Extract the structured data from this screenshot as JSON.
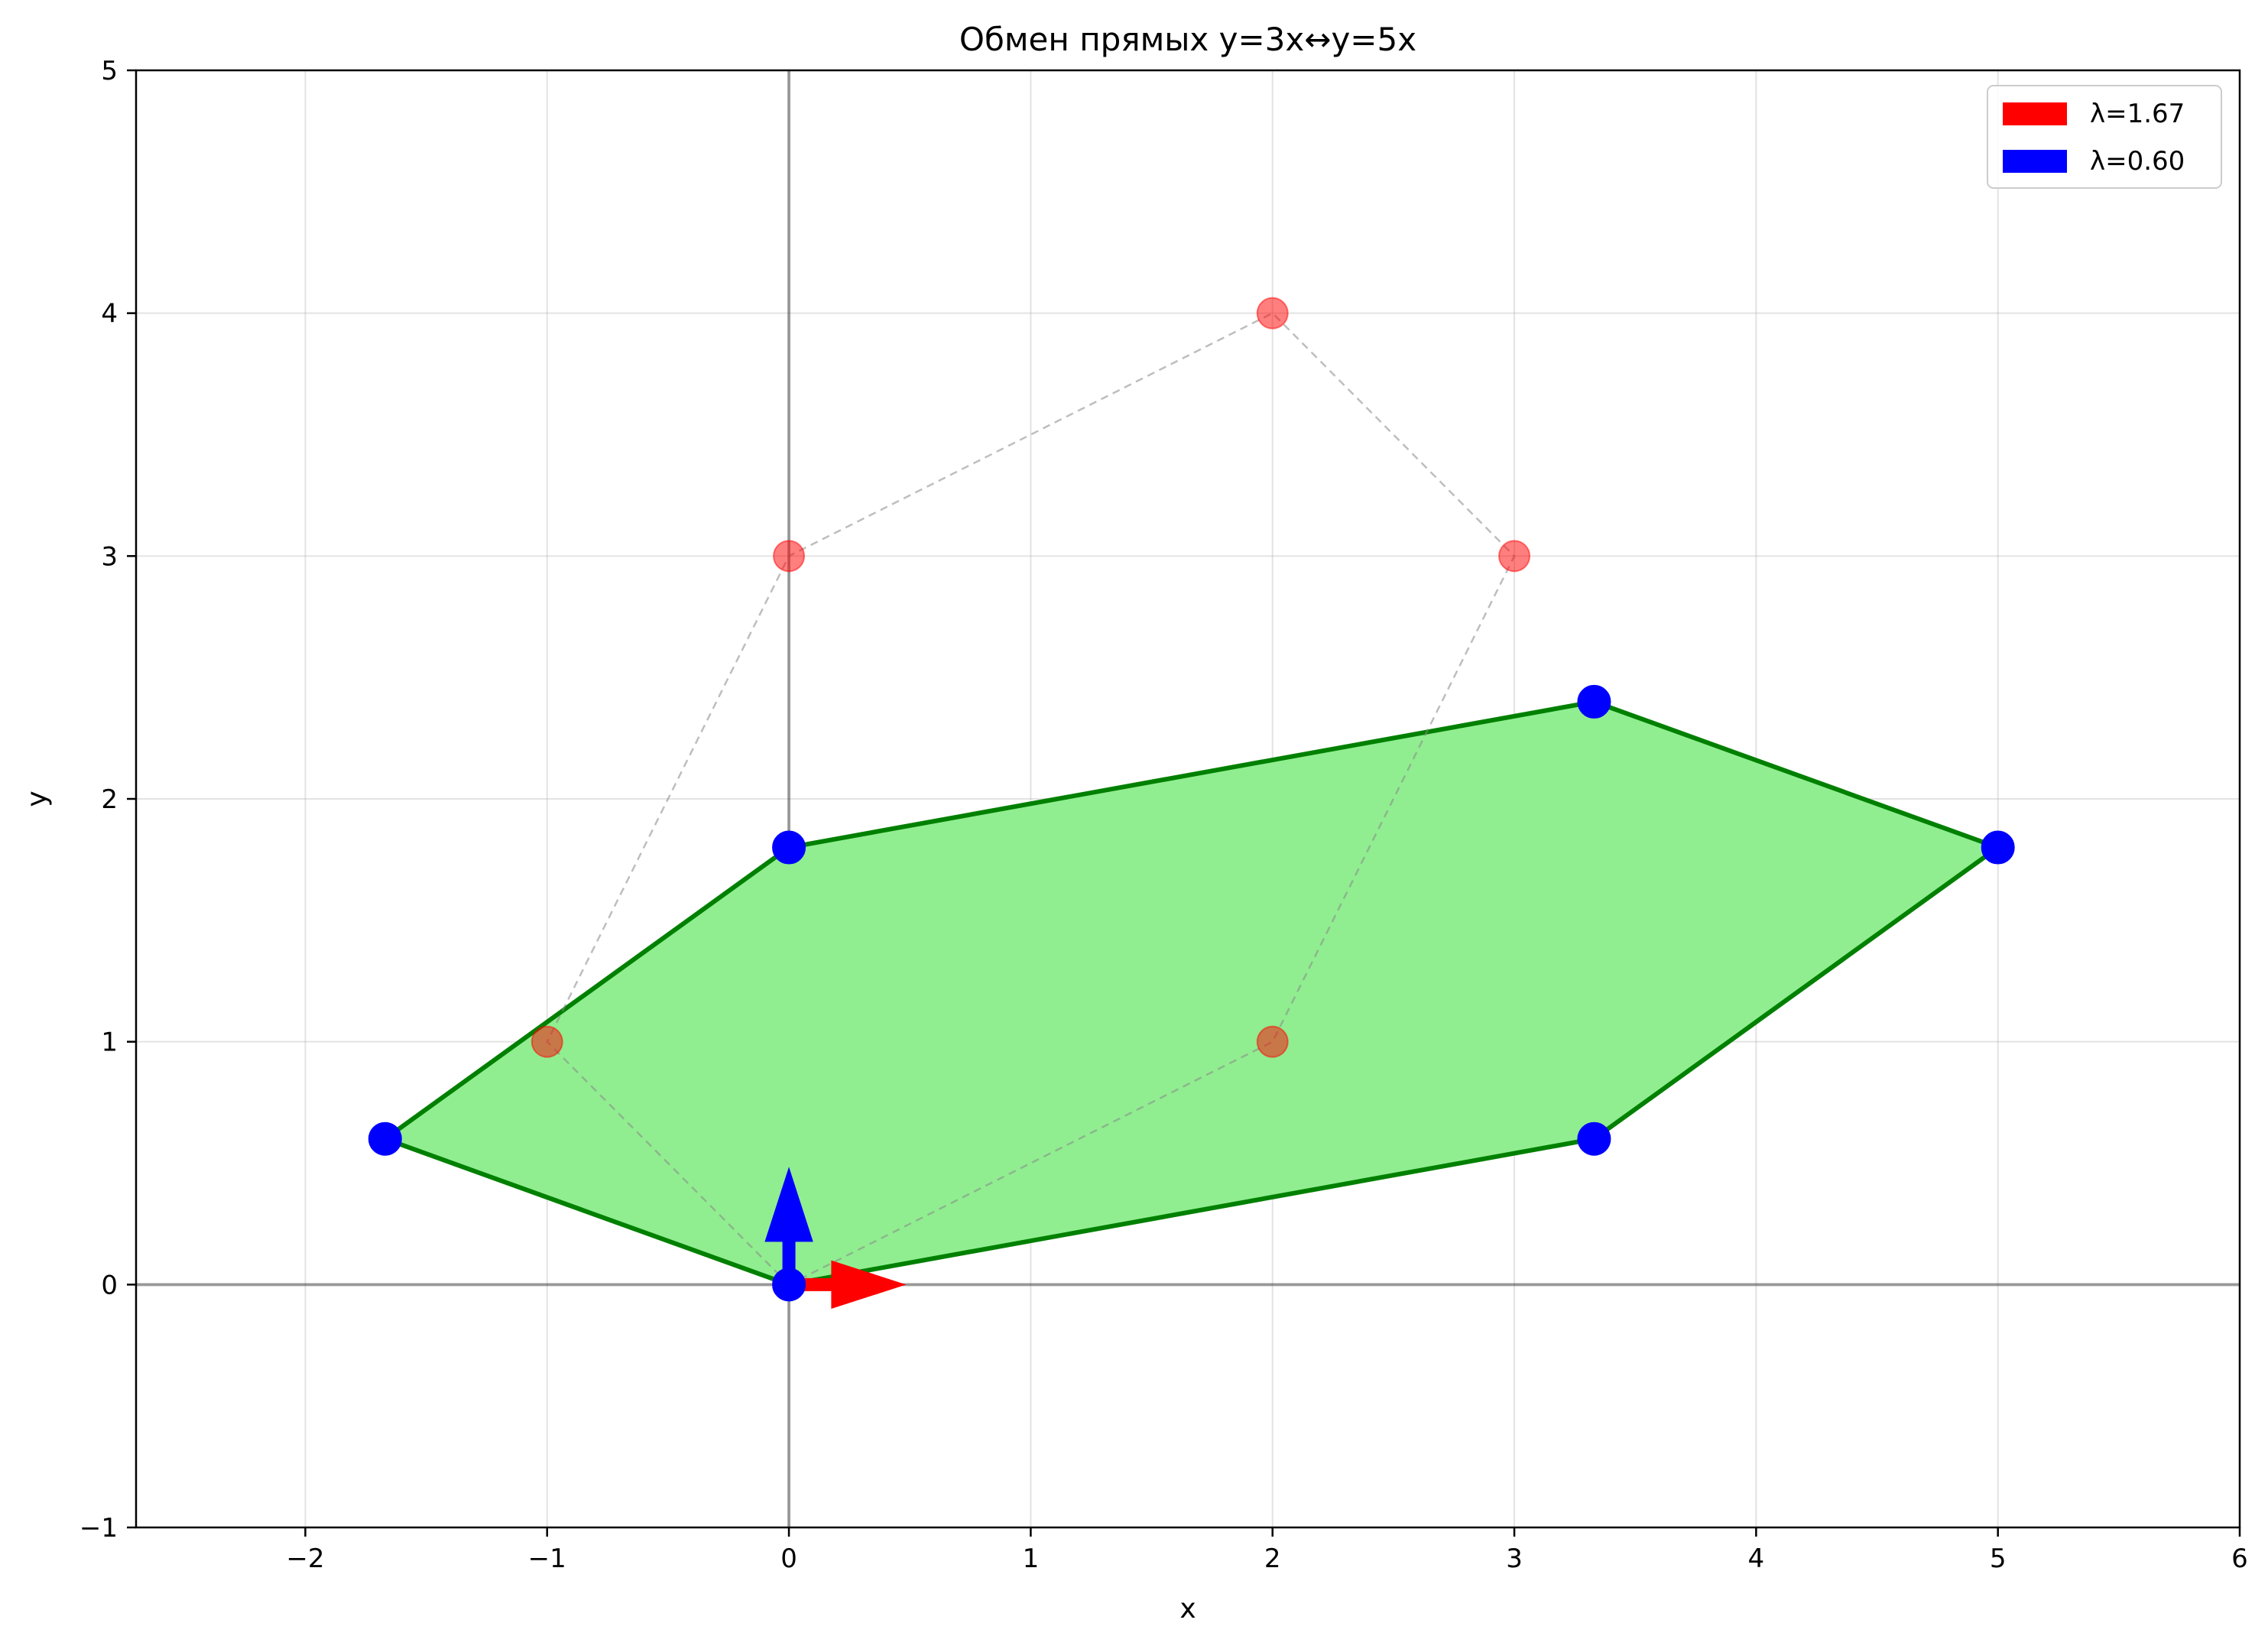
{
  "chart_data": {
    "type": "scatter",
    "title": "Обмен прямых y=3x↔y=5x",
    "xlabel": "x",
    "ylabel": "y",
    "xlim": [
      -2.7,
      6
    ],
    "ylim": [
      -1,
      5
    ],
    "x_ticks": [
      -2,
      -1,
      0,
      1,
      2,
      3,
      4,
      5,
      6
    ],
    "y_ticks": [
      -1,
      0,
      1,
      2,
      3,
      4,
      5
    ],
    "x_tick_labels": [
      "−2",
      "−1",
      "0",
      "1",
      "2",
      "3",
      "4",
      "5",
      "6"
    ],
    "y_tick_labels": [
      "−1",
      "0",
      "1",
      "2",
      "3",
      "4",
      "5"
    ],
    "grid": true,
    "legend_position": "top-right",
    "series": [
      {
        "role": "original-polygon",
        "color": "#ff0000",
        "style": "dashed outline, translucent markers",
        "points": [
          [
            0,
            0
          ],
          [
            -1,
            1
          ],
          [
            0,
            3
          ],
          [
            2,
            4
          ],
          [
            3,
            3
          ],
          [
            2,
            1
          ]
        ]
      },
      {
        "role": "transformed-polygon",
        "color": "#0000ff",
        "fill": "#90ee90",
        "edge": "#008000",
        "points": [
          [
            0,
            0
          ],
          [
            -1.67,
            0.6
          ],
          [
            0,
            1.8
          ],
          [
            3.33,
            2.4
          ],
          [
            5,
            1.8
          ],
          [
            3.33,
            0.6
          ]
        ]
      }
    ],
    "vectors": [
      {
        "name": "λ=1.67",
        "color": "#ff0000",
        "from": [
          0,
          0
        ],
        "to": [
          0.48,
          0
        ]
      },
      {
        "name": "λ=0.60",
        "color": "#0000ff",
        "from": [
          0,
          0
        ],
        "to": [
          0,
          0.48
        ]
      }
    ],
    "legend": [
      {
        "label": "λ=1.67",
        "color": "#ff0000"
      },
      {
        "label": "λ=0.60",
        "color": "#0000ff"
      }
    ]
  }
}
